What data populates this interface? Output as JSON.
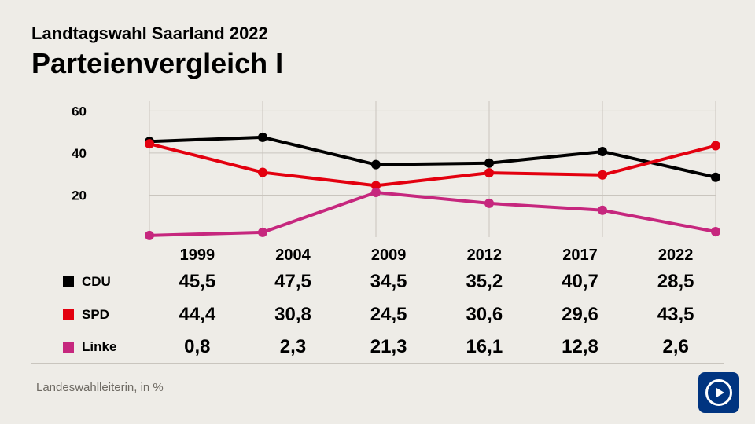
{
  "background_color": "#eeece7",
  "subtitle": "Landtagswahl Saarland 2022",
  "title": "Parteienvergleich I",
  "chart": {
    "type": "line",
    "years": [
      "1999",
      "2004",
      "2009",
      "2012",
      "2017",
      "2022"
    ],
    "yticks": [
      20,
      40,
      60
    ],
    "ylim_min": 0,
    "ylim_max": 65,
    "grid_color": "#c9c5be",
    "line_width": 4,
    "marker_radius": 6,
    "tick_fontsize": 17,
    "axis_fontweight": 700
  },
  "series": [
    {
      "name": "CDU",
      "color": "#000000",
      "values": [
        45.5,
        47.5,
        34.5,
        35.2,
        40.7,
        28.5
      ],
      "labels": [
        "45,5",
        "47,5",
        "34,5",
        "35,2",
        "40,7",
        "28,5"
      ]
    },
    {
      "name": "SPD",
      "color": "#e3000f",
      "values": [
        44.4,
        30.8,
        24.5,
        30.6,
        29.6,
        43.5
      ],
      "labels": [
        "44,4",
        "30,8",
        "24,5",
        "30,6",
        "29,6",
        "43,5"
      ]
    },
    {
      "name": "Linke",
      "color": "#c6277e",
      "values": [
        0.8,
        2.3,
        21.3,
        16.1,
        12.8,
        2.6
      ],
      "labels": [
        "0,8",
        "2,3",
        "21,3",
        "16,1",
        "12,8",
        "2,6"
      ]
    }
  ],
  "value_fontsize": 24,
  "year_fontsize": 20,
  "legend_fontsize": 17,
  "swatch_size": 14,
  "footer_text": "Landeswahlleiterin, in %",
  "footer_color": "#6e6a63",
  "footer_fontsize": 15,
  "logo": {
    "bg_color": "#003480",
    "fg_color": "#ffffff"
  }
}
